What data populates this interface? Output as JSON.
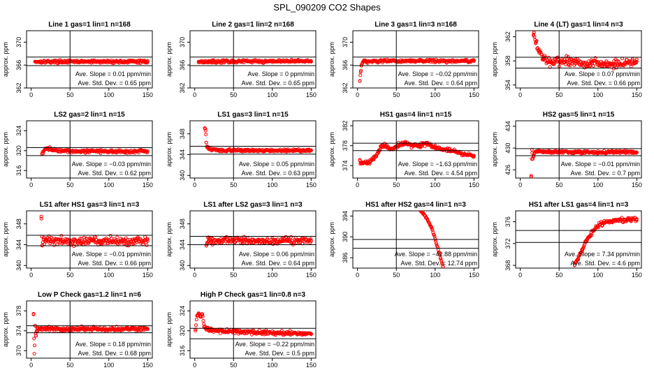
{
  "page_title": "SPL_090209  CO2 Shapes",
  "chart_data": [
    {
      "type": "scatter",
      "title": "Line 1 gas=1 lin=1 n=168",
      "ylabel": "approx. ppm",
      "xlim": [
        0,
        150
      ],
      "ylim": [
        362,
        372
      ],
      "xticks": [
        0,
        50,
        100,
        150
      ],
      "yticks": [
        362,
        366,
        370
      ],
      "vline": 50,
      "hlines": [
        367.4,
        365.9
      ],
      "points_x": [
        5,
        150
      ],
      "points_y": [
        366.6,
        366.6
      ],
      "points_noise": 0.15,
      "slope": "0.01",
      "std_dev": "0.65"
    },
    {
      "type": "scatter",
      "title": "Line 2 gas=1 lin=2 n=168",
      "ylabel": "approx. ppm",
      "xlim": [
        0,
        150
      ],
      "ylim": [
        362,
        372
      ],
      "xticks": [
        0,
        50,
        100,
        150
      ],
      "yticks": [
        362,
        366,
        370
      ],
      "vline": 50,
      "hlines": [
        367.4,
        365.9
      ],
      "points_x": [
        5,
        150
      ],
      "points_y": [
        366.6,
        366.7
      ],
      "points_noise": 0.15,
      "slope": "0",
      "std_dev": "0.65"
    },
    {
      "type": "scatter",
      "title": "Line 3 gas=1 lin=3 n=168",
      "ylabel": "approx. ppm",
      "xlim": [
        0,
        150
      ],
      "ylim": [
        362,
        372
      ],
      "xticks": [
        0,
        50,
        100,
        150
      ],
      "yticks": [
        362,
        366,
        370
      ],
      "vline": 50,
      "hlines": [
        367.4,
        365.9
      ],
      "points_x": [
        3,
        4,
        5,
        8,
        12,
        20,
        150
      ],
      "points_y": [
        363.2,
        364.8,
        365.9,
        366.8,
        366.6,
        366.7,
        366.7
      ],
      "points_noise": 0.15,
      "slope": "−0.02",
      "std_dev": "0.64"
    },
    {
      "type": "scatter",
      "title": "Line 4 (LT) gas=1 lin=4 n=3",
      "ylabel": "approx. ppm",
      "xlim": [
        0,
        150
      ],
      "ylim": [
        353.5,
        363
      ],
      "xticks": [
        0,
        50,
        100,
        150
      ],
      "yticks": [
        354,
        358,
        362
      ],
      "vline": 50,
      "hlines": [
        358.6,
        356.8
      ],
      "points_x": [
        17,
        20,
        25,
        30,
        40,
        60,
        90,
        120,
        150
      ],
      "points_y": [
        362.4,
        361,
        359.5,
        358.3,
        357.7,
        357.9,
        357.6,
        357.5,
        357.9
      ],
      "points_noise": 0.45,
      "slope": "0.07",
      "std_dev": "0.66"
    },
    {
      "type": "scatter",
      "title": "LS2 gas=2 lin=1 n=15",
      "ylabel": "approx. ppm",
      "xlim": [
        0,
        150
      ],
      "ylim": [
        314.5,
        326
      ],
      "xticks": [
        0,
        50,
        100,
        150
      ],
      "yticks": [
        316,
        320,
        324
      ],
      "vline": 50,
      "hlines": [
        320.6,
        319.0
      ],
      "points_x": [
        14,
        16,
        18,
        22,
        30,
        60,
        90,
        120,
        150
      ],
      "points_y": [
        319.3,
        319.9,
        320.4,
        320.4,
        320.1,
        319.9,
        319.9,
        319.8,
        319.9
      ],
      "points_noise": 0.2,
      "slope": "−0.03",
      "std_dev": "0.62"
    },
    {
      "type": "scatter",
      "title": "LS1 gas=3 lin=1 n=15",
      "ylabel": "approx. ppm",
      "xlim": [
        0,
        150
      ],
      "ylim": [
        339.5,
        350.5
      ],
      "xticks": [
        0,
        50,
        100,
        150
      ],
      "yticks": [
        340,
        344,
        348
      ],
      "vline": 50,
      "hlines": [
        345.6,
        344.1
      ],
      "points_x": [
        13,
        14,
        15,
        16,
        18,
        30,
        60,
        90,
        120,
        150
      ],
      "points_y": [
        349.1,
        348.6,
        346.3,
        345.4,
        345.1,
        344.8,
        344.8,
        344.8,
        344.8,
        344.8
      ],
      "points_noise": 0.15,
      "slope": "0.05",
      "std_dev": "0.63"
    },
    {
      "type": "scatter",
      "title": "HS1 gas=4 lin=1 n=15",
      "ylabel": "approx. ppm",
      "xlim": [
        0,
        150
      ],
      "ylim": [
        371.5,
        383
      ],
      "xticks": [
        0,
        50,
        100,
        150
      ],
      "yticks": [
        374,
        378,
        382
      ],
      "vline": 50,
      "hlines": [
        378.5,
        377.0
      ],
      "points_x": [
        3,
        5,
        8,
        15,
        20,
        25,
        30,
        35,
        40,
        45,
        50,
        55,
        60,
        70,
        80,
        90,
        95,
        100,
        110,
        120,
        130,
        140,
        150
      ],
      "points_y": [
        375.0,
        374.4,
        374.6,
        374.6,
        375.3,
        376.3,
        377.8,
        378.0,
        377.5,
        377.3,
        377.8,
        378.2,
        378.5,
        378.1,
        378.0,
        378.4,
        378.0,
        377.6,
        377.3,
        377.0,
        376.6,
        376.2,
        375.9
      ],
      "points_noise": 0.25,
      "slope": "−1.63",
      "std_dev": "4.54"
    },
    {
      "type": "scatter",
      "title": "HS2 gas=5 lin=1 n=15",
      "ylabel": "approx. ppm",
      "xlim": [
        0,
        150
      ],
      "ylim": [
        424.5,
        435
      ],
      "xticks": [
        0,
        50,
        100,
        150
      ],
      "yticks": [
        426,
        430,
        434
      ],
      "vline": 50,
      "hlines": [
        429.9,
        428.6
      ],
      "points_x": [
        14,
        15,
        16,
        17,
        18,
        20,
        25,
        40,
        70,
        100,
        130,
        150
      ],
      "points_y": [
        424.7,
        429.7,
        428.0,
        428.6,
        429.0,
        429.3,
        429.4,
        429.2,
        429.3,
        429.2,
        429.3,
        429.2
      ],
      "points_noise": 0.15,
      "slope": "−0.01",
      "std_dev": "0.7"
    },
    {
      "type": "scatter",
      "title": "LS1 after HS1 gas=3 lin=1 n=3",
      "ylabel": "approx. ppm",
      "xlim": [
        0,
        150
      ],
      "ylim": [
        339.5,
        350.5
      ],
      "xticks": [
        0,
        50,
        100,
        150
      ],
      "yticks": [
        340,
        344,
        348
      ],
      "vline": 50,
      "hlines": [
        345.8,
        343.8
      ],
      "points_x": [
        13,
        14,
        16,
        20,
        30,
        60,
        90,
        120,
        150
      ],
      "points_y": [
        349.4,
        343.8,
        345.0,
        344.9,
        344.8,
        344.7,
        344.7,
        344.6,
        344.7
      ],
      "points_noise": 0.5,
      "slope": "−0.01",
      "std_dev": "0.66"
    },
    {
      "type": "scatter",
      "title": "LS1 after LS2 gas=3 lin=1 n=3",
      "ylabel": "approx. ppm",
      "xlim": [
        0,
        150
      ],
      "ylim": [
        339.5,
        350.5
      ],
      "xticks": [
        0,
        50,
        100,
        150
      ],
      "yticks": [
        340,
        344,
        348
      ],
      "vline": 50,
      "hlines": [
        345.6,
        344.0
      ],
      "points_x": [
        15,
        16,
        18,
        22,
        30,
        60,
        90,
        120,
        150
      ],
      "points_y": [
        343.8,
        344.4,
        345.0,
        344.6,
        344.8,
        344.8,
        344.7,
        344.7,
        344.8
      ],
      "points_noise": 0.4,
      "slope": "0.06",
      "std_dev": "0.64"
    },
    {
      "type": "scatter",
      "title": "HS1 after HS2 gas=4 lin=1 n=3",
      "ylabel": "approx. ppm",
      "xlim": [
        0,
        150
      ],
      "ylim": [
        384,
        395
      ],
      "xticks": [
        0,
        50,
        100,
        150
      ],
      "yticks": [
        386,
        390,
        394
      ],
      "vline": 50,
      "hlines": [
        389.5,
        387.8
      ],
      "points_x": [
        80,
        85,
        90,
        95,
        100,
        105,
        110
      ],
      "points_y": [
        395.2,
        394.4,
        393.3,
        391.9,
        389.6,
        387.0,
        384.3
      ],
      "points_noise": 0.1,
      "slope": "−42.88",
      "std_dev": "12.74"
    },
    {
      "type": "scatter",
      "title": "HS1 after LS1 gas=4 lin=1 n=3",
      "ylabel": "approx. ppm",
      "xlim": [
        0,
        150
      ],
      "ylim": [
        367.5,
        378
      ],
      "xticks": [
        0,
        50,
        100,
        150
      ],
      "yticks": [
        368,
        372,
        376
      ],
      "vline": 50,
      "hlines": [
        374.4,
        372.2
      ],
      "points_x": [
        70,
        75,
        80,
        85,
        90,
        95,
        100,
        105,
        110,
        120,
        130,
        140,
        150
      ],
      "points_y": [
        368.0,
        369.5,
        371.0,
        372.4,
        373.5,
        374.5,
        375.2,
        375.7,
        376.0,
        376.2,
        376.3,
        376.4,
        376.5
      ],
      "points_noise": 0.25,
      "slope": "7.34",
      "std_dev": "4.6"
    },
    {
      "type": "scatter",
      "title": "Low P Check gas=1.2 lin=1 n=6",
      "ylabel": "approx. ppm",
      "xlim": [
        0,
        150
      ],
      "ylim": [
        368.5,
        380
      ],
      "xticks": [
        0,
        50,
        100,
        150
      ],
      "yticks": [
        370,
        374,
        378
      ],
      "vline": 50,
      "hlines": [
        375.0,
        373.6
      ],
      "points_x": [
        3,
        4,
        5,
        6,
        7,
        8,
        12,
        20,
        40,
        70,
        100,
        130,
        150
      ],
      "points_y": [
        377.4,
        369.4,
        375.0,
        373.0,
        373.8,
        374.5,
        374.3,
        374.4,
        374.3,
        374.4,
        374.3,
        374.4,
        374.4
      ],
      "points_noise": 0.25,
      "slope": "0.18",
      "std_dev": "0.68"
    },
    {
      "type": "scatter",
      "title": "High P Check gas=1 lin=0.8 n=3",
      "ylabel": "approx. ppm",
      "xlim": [
        0,
        150
      ],
      "ylim": [
        314.5,
        326
      ],
      "xticks": [
        0,
        50,
        100,
        150
      ],
      "yticks": [
        316,
        320,
        324
      ],
      "vline": 50,
      "hlines": [
        320.5,
        318.4
      ],
      "points_x": [
        1,
        3,
        5,
        8,
        10,
        12,
        15,
        20,
        30,
        60,
        90,
        120,
        150
      ],
      "points_y": [
        320.3,
        323.0,
        323.5,
        322.8,
        323.3,
        320.8,
        320.4,
        320.2,
        320.0,
        319.8,
        319.6,
        319.5,
        319.4
      ],
      "points_noise": 0.25,
      "slope": "−0.22",
      "std_dev": "0.5"
    }
  ],
  "labels": {
    "slope_prefix": "Ave. Slope =",
    "slope_unit": "ppm/min",
    "std_prefix": "Ave. Std. Dev. =",
    "std_unit": "ppm"
  },
  "colors": {
    "points": "#ff0000",
    "axes": "#000000"
  }
}
